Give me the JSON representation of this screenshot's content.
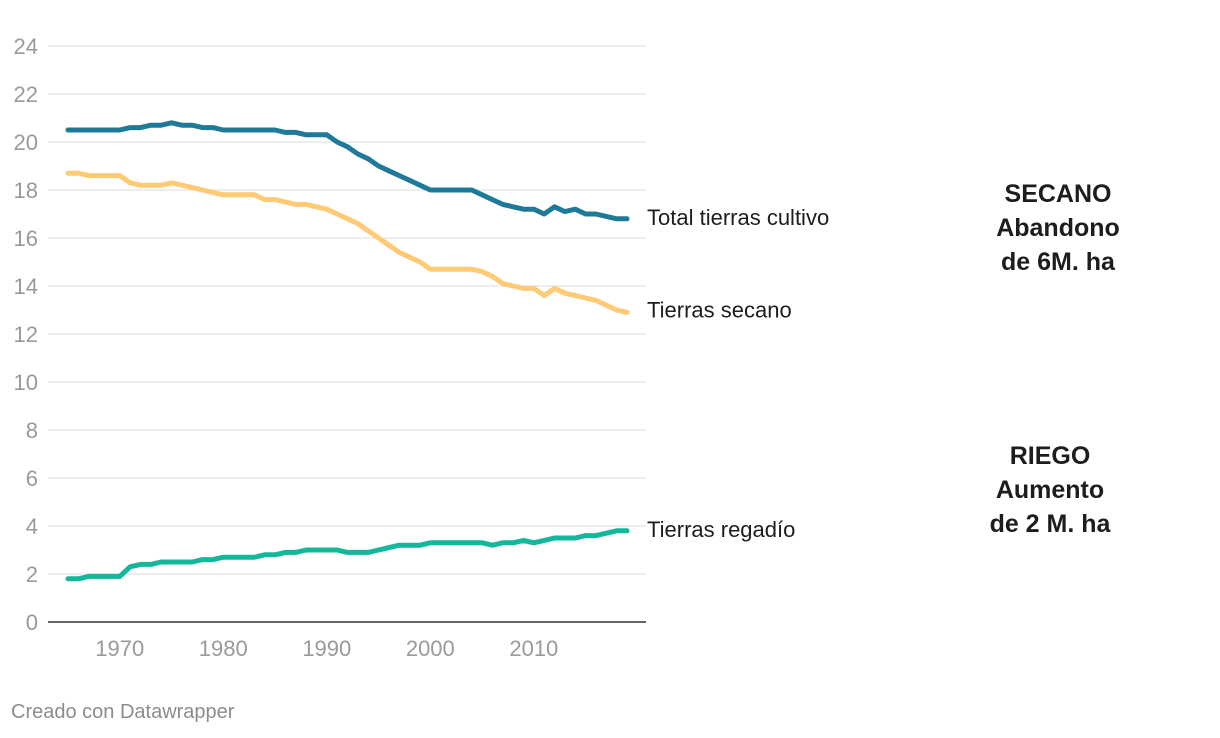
{
  "chart_data": {
    "type": "line",
    "title": "",
    "xlabel": "",
    "ylabel": "",
    "xlim": [
      1965,
      2019
    ],
    "ylim": [
      0,
      24
    ],
    "yticks": [
      0,
      2,
      4,
      6,
      8,
      10,
      12,
      14,
      16,
      18,
      20,
      22,
      24
    ],
    "xticks": [
      1970,
      1980,
      1990,
      2000,
      2010
    ],
    "x": [
      1965,
      1966,
      1967,
      1968,
      1969,
      1970,
      1971,
      1972,
      1973,
      1974,
      1975,
      1976,
      1977,
      1978,
      1979,
      1980,
      1981,
      1982,
      1983,
      1984,
      1985,
      1986,
      1987,
      1988,
      1989,
      1990,
      1991,
      1992,
      1993,
      1994,
      1995,
      1996,
      1997,
      1998,
      1999,
      2000,
      2001,
      2002,
      2003,
      2004,
      2005,
      2006,
      2007,
      2008,
      2009,
      2010,
      2011,
      2012,
      2013,
      2014,
      2015,
      2016,
      2017,
      2018,
      2019
    ],
    "series": [
      {
        "name": "Total tierras cultivo",
        "color": "#1f7a99",
        "values": [
          20.5,
          20.5,
          20.5,
          20.5,
          20.5,
          20.5,
          20.6,
          20.6,
          20.7,
          20.7,
          20.8,
          20.7,
          20.7,
          20.6,
          20.6,
          20.5,
          20.5,
          20.5,
          20.5,
          20.5,
          20.5,
          20.4,
          20.4,
          20.3,
          20.3,
          20.3,
          20.0,
          19.8,
          19.5,
          19.3,
          19.0,
          18.8,
          18.6,
          18.4,
          18.2,
          18.0,
          18.0,
          18.0,
          18.0,
          18.0,
          17.8,
          17.6,
          17.4,
          17.3,
          17.2,
          17.2,
          17.0,
          17.3,
          17.1,
          17.2,
          17.0,
          17.0,
          16.9,
          16.8,
          16.8
        ]
      },
      {
        "name": "Tierras secano",
        "color": "#fdca75",
        "values": [
          18.7,
          18.7,
          18.6,
          18.6,
          18.6,
          18.6,
          18.3,
          18.2,
          18.2,
          18.2,
          18.3,
          18.2,
          18.1,
          18.0,
          17.9,
          17.8,
          17.8,
          17.8,
          17.8,
          17.6,
          17.6,
          17.5,
          17.4,
          17.4,
          17.3,
          17.2,
          17.0,
          16.8,
          16.6,
          16.3,
          16.0,
          15.7,
          15.4,
          15.2,
          15.0,
          14.7,
          14.7,
          14.7,
          14.7,
          14.7,
          14.6,
          14.4,
          14.1,
          14.0,
          13.9,
          13.9,
          13.6,
          13.9,
          13.7,
          13.6,
          13.5,
          13.4,
          13.2,
          13.0,
          12.9
        ]
      },
      {
        "name": "Tierras regadío",
        "color": "#13b89a",
        "values": [
          1.8,
          1.8,
          1.9,
          1.9,
          1.9,
          1.9,
          2.3,
          2.4,
          2.4,
          2.5,
          2.5,
          2.5,
          2.5,
          2.6,
          2.6,
          2.7,
          2.7,
          2.7,
          2.7,
          2.8,
          2.8,
          2.9,
          2.9,
          3.0,
          3.0,
          3.0,
          3.0,
          2.9,
          2.9,
          2.9,
          3.0,
          3.1,
          3.2,
          3.2,
          3.2,
          3.3,
          3.3,
          3.3,
          3.3,
          3.3,
          3.3,
          3.2,
          3.3,
          3.3,
          3.4,
          3.3,
          3.4,
          3.5,
          3.5,
          3.5,
          3.6,
          3.6,
          3.7,
          3.8,
          3.8
        ]
      }
    ],
    "annotations": [
      {
        "id": "secano",
        "lines": [
          "SECANO",
          "Abandono",
          "de 6M. ha"
        ]
      },
      {
        "id": "riego",
        "lines": [
          "RIEGO",
          "Aumento",
          "de 2 M. ha"
        ]
      }
    ],
    "credit": "Creado con Datawrapper"
  }
}
